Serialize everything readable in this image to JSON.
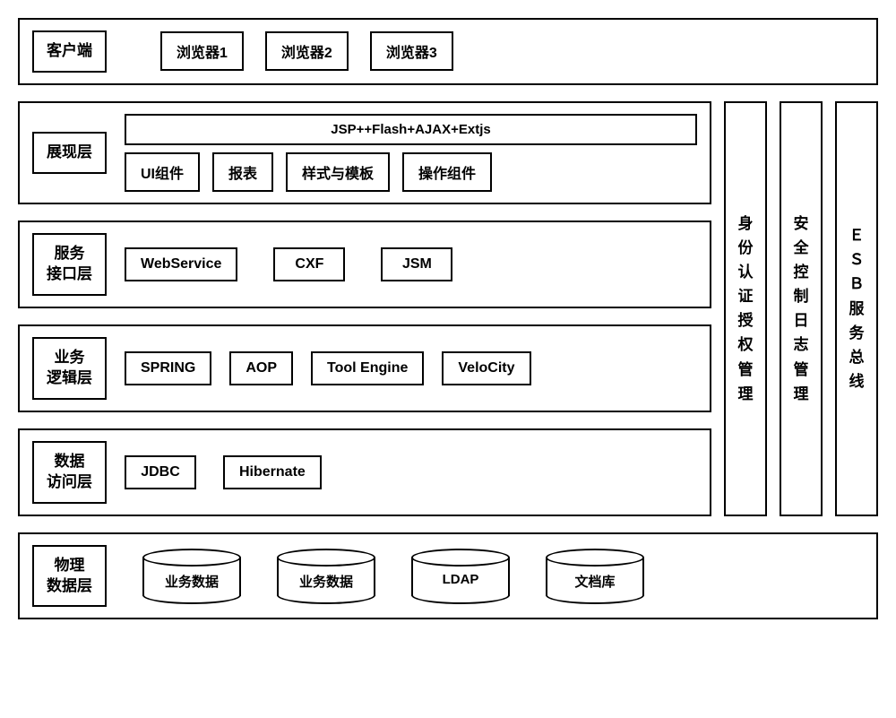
{
  "diagram": {
    "type": "layered-architecture",
    "border_color": "#000000",
    "background_color": "#ffffff",
    "font_family": "Microsoft YaHei",
    "box_border_width": 2,
    "label_fontsize": 17,
    "pill_fontsize": 16,
    "gap_between_layers": 18
  },
  "client_row": {
    "label": "客户端",
    "items": [
      "浏览器1",
      "浏览器2",
      "浏览器3"
    ]
  },
  "layers": [
    {
      "label_lines": [
        "展现层"
      ],
      "top_bar": "JSP++Flash+AJAX+Extjs",
      "items": [
        "UI组件",
        "报表",
        "样式与模板",
        "操作组件"
      ]
    },
    {
      "label_lines": [
        "服务",
        "接口层"
      ],
      "items": [
        "WebService",
        "CXF",
        "JSM"
      ]
    },
    {
      "label_lines": [
        "业务",
        "逻辑层"
      ],
      "items": [
        "SPRING",
        "AOP",
        "Tool Engine",
        "VeloCity"
      ]
    },
    {
      "label_lines": [
        "数据",
        "访问层"
      ],
      "items": [
        "JDBC",
        "Hibernate"
      ]
    }
  ],
  "pillars": [
    "身份认证授权管理",
    "安全控制日志管理",
    "ＥＳＢ服务总线"
  ],
  "physical_row": {
    "label_lines": [
      "物理",
      "数据层"
    ],
    "cylinders": [
      "业务数据",
      "业务数据",
      "LDAP",
      "文档库"
    ]
  }
}
